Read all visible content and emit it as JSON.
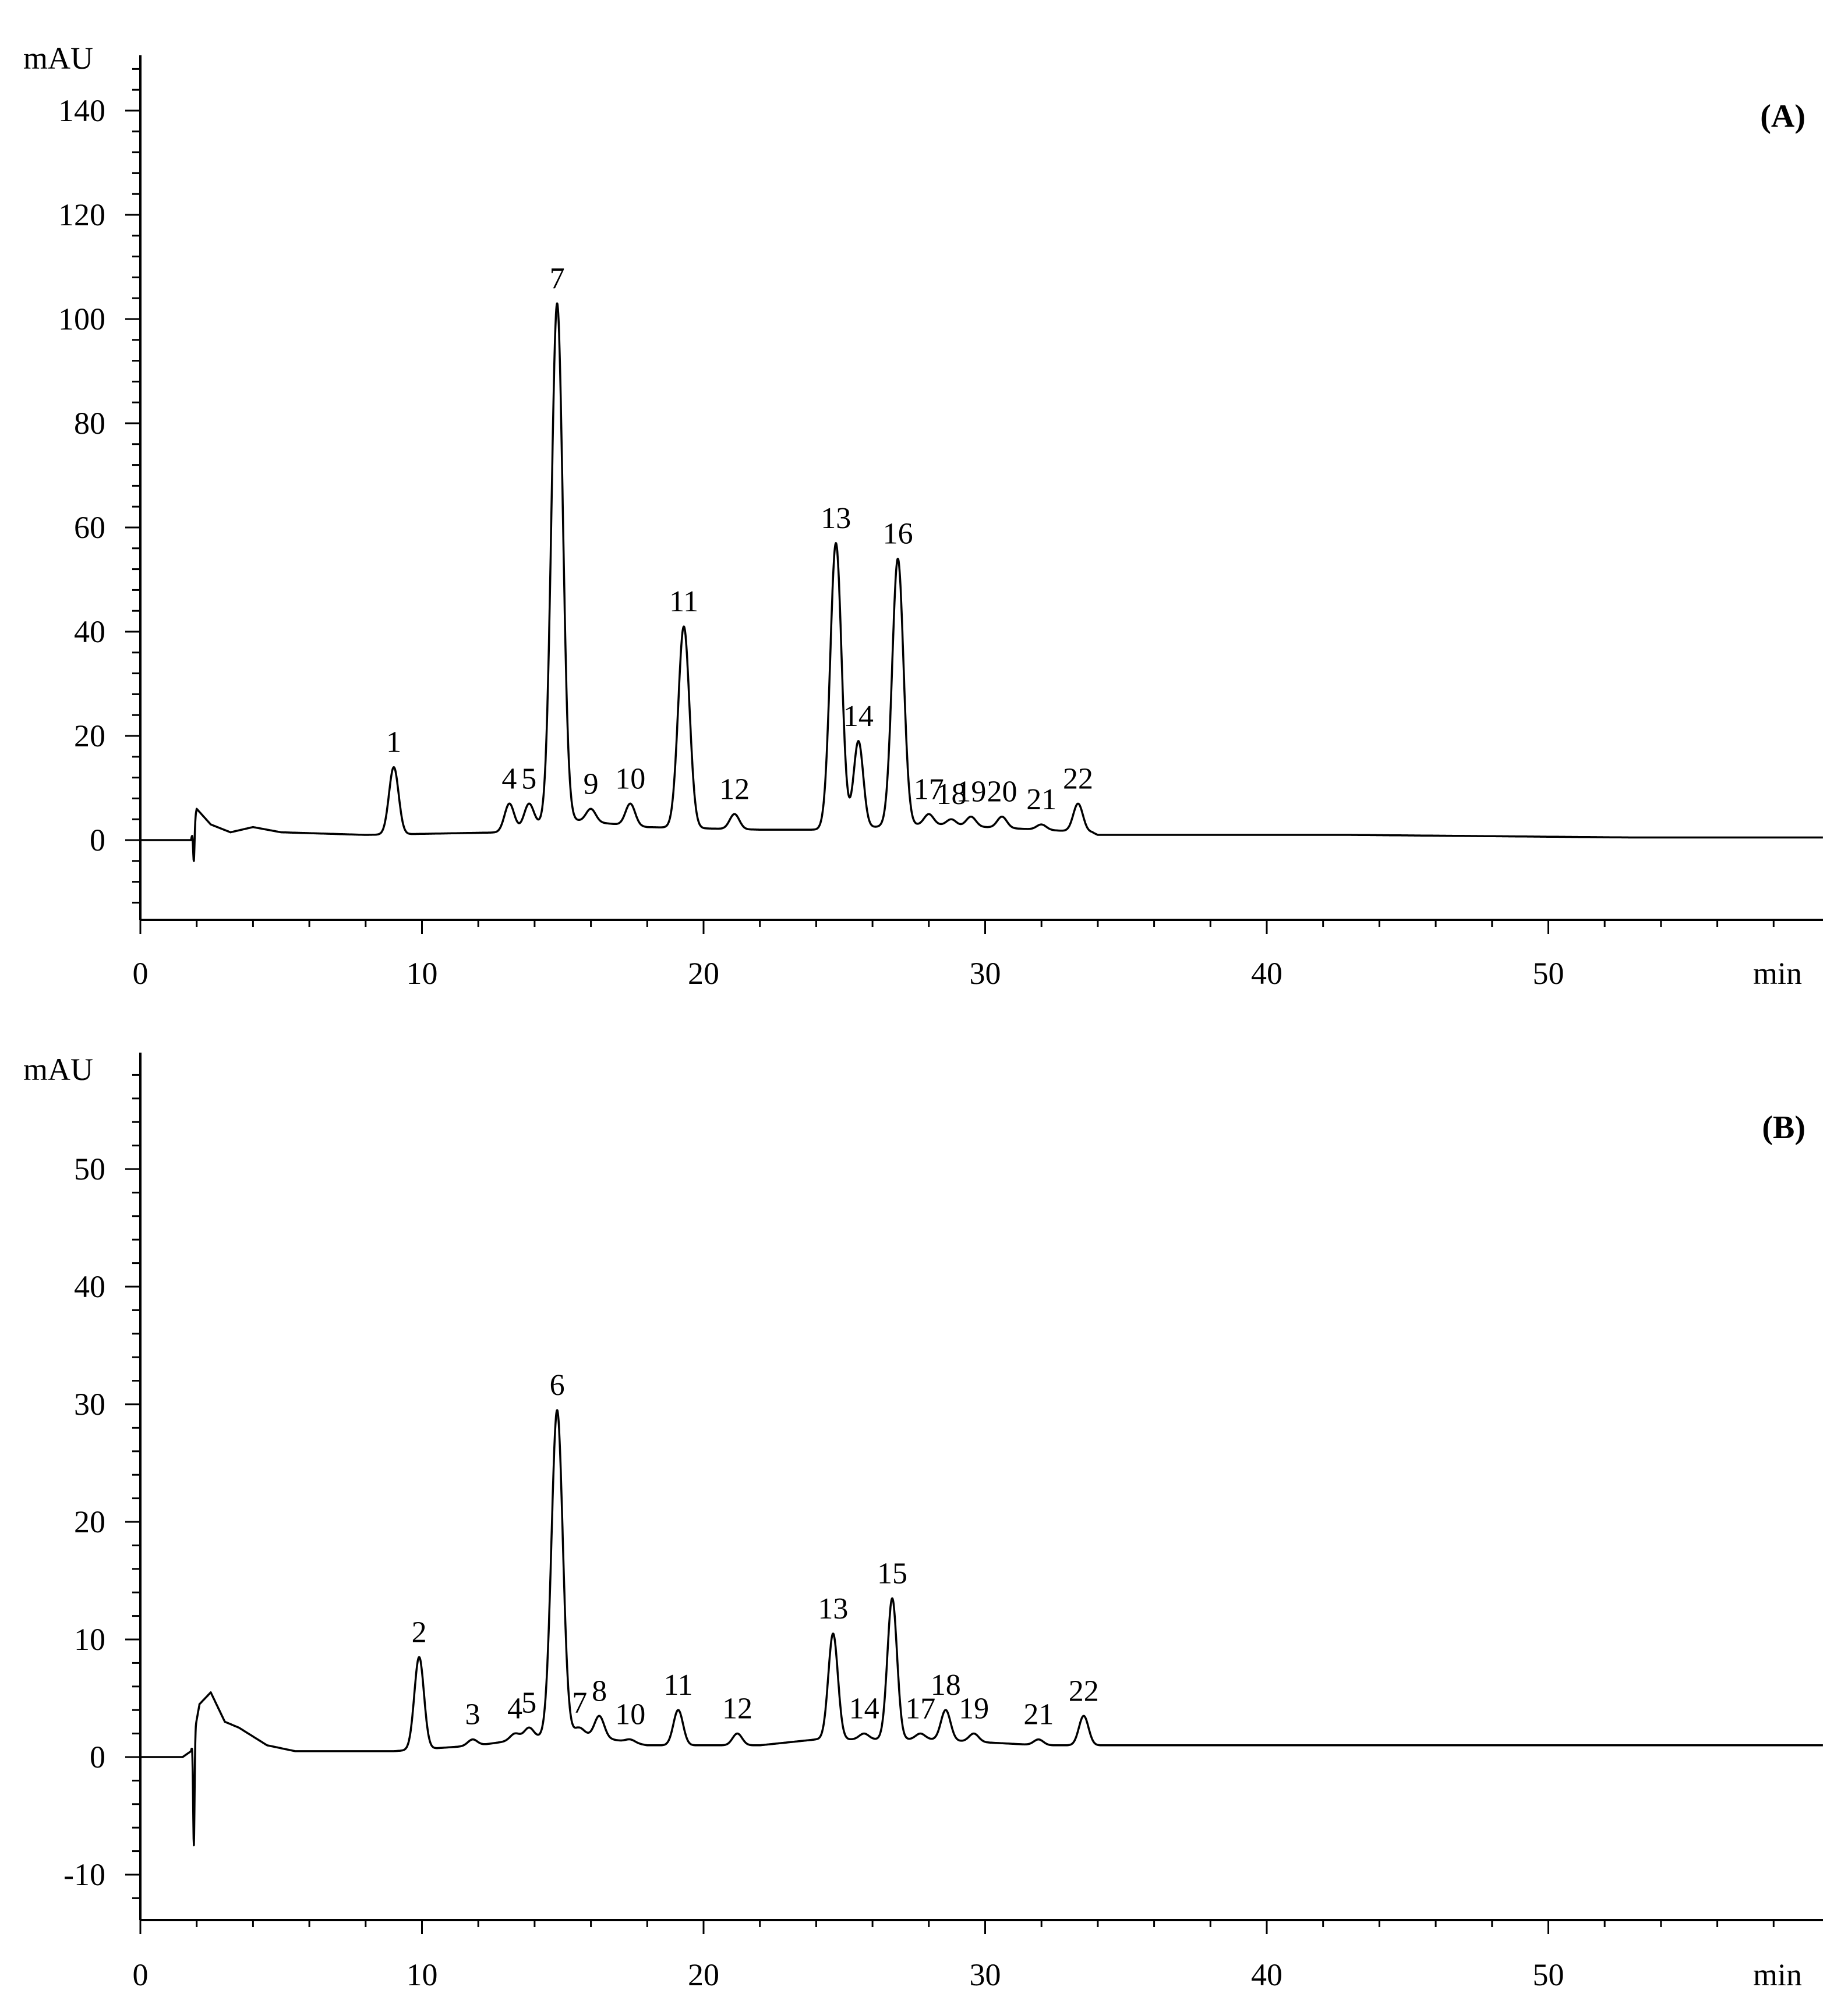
{
  "chart_data": [
    {
      "type": "line",
      "panel_label": "(A)",
      "ylabel": "mAU",
      "xlabel": "min",
      "xlim": [
        0,
        60
      ],
      "ylim": [
        -15,
        150
      ],
      "x_ticks": [
        0,
        10,
        20,
        30,
        40,
        50
      ],
      "y_ticks": [
        0,
        20,
        40,
        60,
        80,
        100,
        120,
        140
      ],
      "baseline": [
        [
          0,
          0
        ],
        [
          1.8,
          0
        ],
        [
          2.0,
          6
        ],
        [
          2.5,
          3
        ],
        [
          3.2,
          1.5
        ],
        [
          4,
          2.5
        ],
        [
          5,
          1.5
        ],
        [
          8,
          1
        ],
        [
          13,
          1.5
        ],
        [
          15,
          4
        ],
        [
          18,
          2.5
        ],
        [
          22,
          2
        ],
        [
          24,
          2
        ],
        [
          28,
          3
        ],
        [
          32,
          2
        ],
        [
          33.8,
          1.5
        ],
        [
          34,
          1
        ],
        [
          43,
          1
        ],
        [
          53,
          0.5
        ],
        [
          60,
          0.5
        ]
      ],
      "dip": {
        "x": 1.9,
        "y": -4
      },
      "peaks": [
        {
          "label": "1",
          "x": 9.0,
          "y": 14.0
        },
        {
          "label": "4",
          "x": 13.1,
          "y": 7.0
        },
        {
          "label": "5",
          "x": 13.8,
          "y": 7.0
        },
        {
          "label": "7",
          "x": 14.8,
          "y": 103.0
        },
        {
          "label": "9",
          "x": 16.0,
          "y": 6.0
        },
        {
          "label": "10",
          "x": 17.4,
          "y": 7.0
        },
        {
          "label": "11",
          "x": 19.3,
          "y": 41.0
        },
        {
          "label": "12",
          "x": 21.1,
          "y": 5.0
        },
        {
          "label": "13",
          "x": 24.7,
          "y": 57.0
        },
        {
          "label": "14",
          "x": 25.5,
          "y": 19.0
        },
        {
          "label": "16",
          "x": 26.9,
          "y": 54.0
        },
        {
          "label": "17",
          "x": 28.0,
          "y": 5.0
        },
        {
          "label": "18",
          "x": 28.8,
          "y": 4.0
        },
        {
          "label": "19",
          "x": 29.5,
          "y": 4.5
        },
        {
          "label": "20",
          "x": 30.6,
          "y": 4.5
        },
        {
          "label": "21",
          "x": 32.0,
          "y": 3.0
        },
        {
          "label": "22",
          "x": 33.3,
          "y": 7.0
        }
      ]
    },
    {
      "type": "line",
      "panel_label": "(B)",
      "ylabel": "mAU",
      "xlabel": "min",
      "xlim": [
        0,
        60
      ],
      "ylim": [
        -14,
        60
      ],
      "x_ticks": [
        0,
        10,
        20,
        30,
        40,
        50
      ],
      "y_ticks": [
        -10,
        0,
        10,
        20,
        30,
        40,
        50
      ],
      "baseline": [
        [
          0,
          0
        ],
        [
          1.5,
          0
        ],
        [
          1.8,
          0.5
        ],
        [
          2.1,
          4.5
        ],
        [
          2.5,
          5.5
        ],
        [
          3.0,
          3
        ],
        [
          3.5,
          2.5
        ],
        [
          4.5,
          1
        ],
        [
          5.5,
          0.5
        ],
        [
          9,
          0.5
        ],
        [
          12,
          1
        ],
        [
          13.5,
          1.5
        ],
        [
          15.5,
          2
        ],
        [
          18,
          1
        ],
        [
          22,
          1
        ],
        [
          24,
          1.5
        ],
        [
          26,
          1.5
        ],
        [
          28,
          1.5
        ],
        [
          32,
          1
        ],
        [
          34,
          1
        ],
        [
          46,
          1
        ],
        [
          60,
          1
        ]
      ],
      "dip": {
        "x": 1.9,
        "y": -7.5
      },
      "peaks": [
        {
          "label": "2",
          "x": 9.9,
          "y": 8.5
        },
        {
          "label": "3",
          "x": 11.8,
          "y": 1.5
        },
        {
          "label": "4",
          "x": 13.3,
          "y": 2.0
        },
        {
          "label": "5",
          "x": 13.8,
          "y": 2.5
        },
        {
          "label": "6",
          "x": 14.8,
          "y": 29.5
        },
        {
          "label": "7",
          "x": 15.6,
          "y": 2.5
        },
        {
          "label": "8",
          "x": 16.3,
          "y": 3.5
        },
        {
          "label": "10",
          "x": 17.4,
          "y": 1.5
        },
        {
          "label": "11",
          "x": 19.1,
          "y": 4.0
        },
        {
          "label": "12",
          "x": 21.2,
          "y": 2.0
        },
        {
          "label": "13",
          "x": 24.6,
          "y": 10.5
        },
        {
          "label": "14",
          "x": 25.7,
          "y": 2.0
        },
        {
          "label": "15",
          "x": 26.7,
          "y": 13.5
        },
        {
          "label": "17",
          "x": 27.7,
          "y": 2.0
        },
        {
          "label": "18",
          "x": 28.6,
          "y": 4.0
        },
        {
          "label": "19",
          "x": 29.6,
          "y": 2.0
        },
        {
          "label": "21",
          "x": 31.9,
          "y": 1.5
        },
        {
          "label": "22",
          "x": 33.5,
          "y": 3.5
        }
      ]
    }
  ]
}
